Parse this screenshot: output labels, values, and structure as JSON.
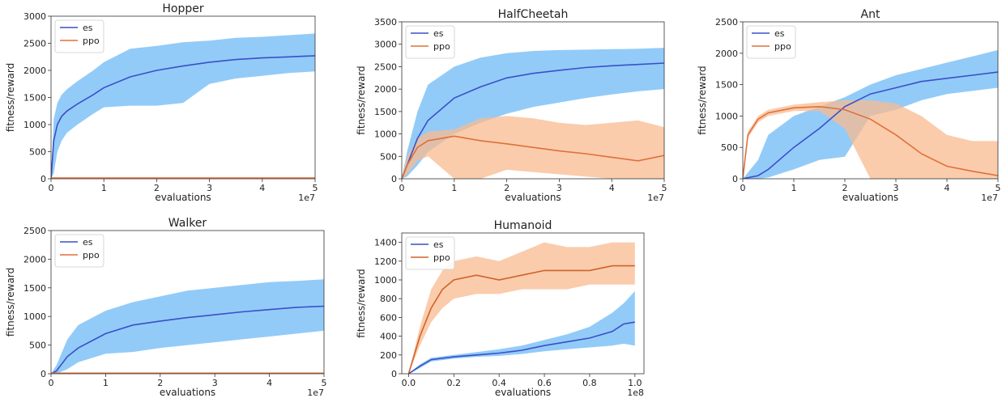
{
  "chart_data": [
    {
      "type": "line",
      "title": "Hopper",
      "xlabel": "evaluations",
      "ylabel": "fitness/reward",
      "x_offset_label": "1e7",
      "xlim": [
        0,
        5
      ],
      "ylim": [
        0,
        3000
      ],
      "xticks": [
        0,
        1,
        2,
        3,
        4,
        5
      ],
      "yticks": [
        0,
        500,
        1000,
        1500,
        2000,
        2500,
        3000
      ],
      "legend": "top-left",
      "grid": false,
      "series": [
        {
          "name": "es",
          "color": "#3a4fc8",
          "band_color": "#6dbaf5",
          "x": [
            0,
            0.05,
            0.12,
            0.2,
            0.3,
            0.5,
            0.8,
            1.0,
            1.5,
            2.0,
            2.5,
            3.0,
            3.5,
            4.0,
            4.5,
            5.0
          ],
          "y": [
            0,
            700,
            1000,
            1150,
            1250,
            1380,
            1550,
            1680,
            1880,
            2000,
            2080,
            2150,
            2200,
            2230,
            2250,
            2270
          ],
          "lower": [
            0,
            100,
            500,
            700,
            850,
            1000,
            1200,
            1320,
            1350,
            1350,
            1400,
            1750,
            1850,
            1900,
            1950,
            1980
          ],
          "upper": [
            0,
            1100,
            1400,
            1550,
            1650,
            1800,
            2000,
            2150,
            2400,
            2450,
            2520,
            2550,
            2600,
            2620,
            2650,
            2680
          ]
        },
        {
          "name": "ppo",
          "color": "#e0703a",
          "band_color": "#f8bb90",
          "x": [
            0,
            5
          ],
          "y": [
            15,
            15
          ],
          "lower": [
            5,
            5
          ],
          "upper": [
            25,
            25
          ]
        }
      ]
    },
    {
      "type": "line",
      "title": "HalfCheetah",
      "xlabel": "evaluations",
      "ylabel": "fitness/reward",
      "x_offset_label": "1e7",
      "xlim": [
        0,
        5
      ],
      "ylim": [
        0,
        3500
      ],
      "xticks": [
        0,
        1,
        2,
        3,
        4,
        5
      ],
      "yticks": [
        0,
        500,
        1000,
        1500,
        2000,
        2500,
        3000,
        3500
      ],
      "legend": "top-left",
      "grid": false,
      "series": [
        {
          "name": "es",
          "color": "#3a4fc8",
          "band_color": "#6dbaf5",
          "x": [
            0,
            0.1,
            0.3,
            0.5,
            1.0,
            1.5,
            2.0,
            2.5,
            3.0,
            3.5,
            4.0,
            4.5,
            5.0
          ],
          "y": [
            0,
            300,
            900,
            1300,
            1800,
            2050,
            2250,
            2350,
            2420,
            2480,
            2520,
            2550,
            2580
          ],
          "lower": [
            0,
            50,
            300,
            600,
            1000,
            1250,
            1450,
            1600,
            1700,
            1800,
            1880,
            1950,
            2000
          ],
          "upper": [
            0,
            600,
            1500,
            2100,
            2500,
            2700,
            2800,
            2850,
            2870,
            2880,
            2890,
            2900,
            2920
          ]
        },
        {
          "name": "ppo",
          "color": "#e0703a",
          "band_color": "#f8bb90",
          "x": [
            0,
            0.1,
            0.3,
            0.5,
            1.0,
            1.5,
            2.0,
            2.5,
            3.0,
            3.5,
            4.0,
            4.5,
            5.0
          ],
          "y": [
            0,
            300,
            700,
            850,
            950,
            850,
            780,
            700,
            620,
            560,
            480,
            400,
            520
          ],
          "lower": [
            0,
            100,
            400,
            500,
            0,
            0,
            200,
            150,
            100,
            50,
            0,
            0,
            0
          ],
          "upper": [
            0,
            500,
            900,
            1050,
            1100,
            1350,
            1400,
            1350,
            1250,
            1200,
            1250,
            1300,
            1150
          ]
        }
      ]
    },
    {
      "type": "line",
      "title": "Ant",
      "xlabel": "evaluations",
      "ylabel": "fitness/reward",
      "x_offset_label": "1e7",
      "xlim": [
        0,
        5
      ],
      "ylim": [
        0,
        2500
      ],
      "xticks": [
        0,
        1,
        2,
        3,
        4,
        5
      ],
      "yticks": [
        0,
        500,
        1000,
        1500,
        2000,
        2500
      ],
      "legend": "top-left",
      "grid": false,
      "series": [
        {
          "name": "es",
          "color": "#3a4fc8",
          "band_color": "#6dbaf5",
          "x": [
            0,
            0.3,
            0.5,
            1.0,
            1.5,
            2.0,
            2.5,
            3.0,
            3.5,
            4.0,
            4.5,
            5.0
          ],
          "y": [
            0,
            50,
            150,
            500,
            800,
            1150,
            1350,
            1450,
            1550,
            1600,
            1650,
            1700
          ],
          "lower": [
            0,
            0,
            20,
            150,
            300,
            350,
            1000,
            1100,
            1250,
            1350,
            1400,
            1450
          ],
          "upper": [
            0,
            300,
            700,
            1000,
            1150,
            1300,
            1500,
            1650,
            1750,
            1850,
            1950,
            2050
          ]
        },
        {
          "name": "ppo",
          "color": "#e0703a",
          "band_color": "#f8bb90",
          "x": [
            0,
            0.1,
            0.3,
            0.5,
            1.0,
            1.5,
            2.0,
            2.5,
            3.0,
            3.5,
            4.0,
            4.5,
            5.0
          ],
          "y": [
            0,
            700,
            950,
            1050,
            1130,
            1150,
            1100,
            950,
            700,
            400,
            200,
            120,
            50
          ],
          "lower": [
            0,
            650,
            900,
            1000,
            1080,
            1080,
            800,
            0,
            0,
            0,
            0,
            0,
            0
          ],
          "upper": [
            0,
            750,
            1000,
            1100,
            1180,
            1220,
            1250,
            1250,
            1200,
            1000,
            700,
            600,
            600
          ]
        }
      ]
    },
    {
      "type": "line",
      "title": "Walker",
      "xlabel": "evaluations",
      "ylabel": "fitness/reward",
      "x_offset_label": "1e7",
      "xlim": [
        0,
        5
      ],
      "ylim": [
        0,
        2500
      ],
      "xticks": [
        0,
        1,
        2,
        3,
        4,
        5
      ],
      "yticks": [
        0,
        500,
        1000,
        1500,
        2000,
        2500
      ],
      "legend": "top-left",
      "grid": false,
      "series": [
        {
          "name": "es",
          "color": "#3a4fc8",
          "band_color": "#6dbaf5",
          "x": [
            0,
            0.1,
            0.3,
            0.5,
            1.0,
            1.5,
            2.0,
            2.5,
            3.0,
            3.5,
            4.0,
            4.5,
            5.0
          ],
          "y": [
            0,
            50,
            300,
            450,
            700,
            850,
            920,
            980,
            1030,
            1080,
            1120,
            1160,
            1180
          ],
          "lower": [
            0,
            0,
            80,
            200,
            350,
            380,
            450,
            500,
            550,
            600,
            650,
            700,
            750
          ],
          "upper": [
            0,
            150,
            600,
            850,
            1100,
            1250,
            1350,
            1450,
            1500,
            1550,
            1600,
            1620,
            1650
          ]
        },
        {
          "name": "ppo",
          "color": "#e0703a",
          "band_color": "#f8bb90",
          "x": [
            0,
            5
          ],
          "y": [
            10,
            10
          ],
          "lower": [
            5,
            5
          ],
          "upper": [
            15,
            15
          ]
        }
      ]
    },
    {
      "type": "line",
      "title": "Humanoid",
      "xlabel": "evaluations",
      "ylabel": "fitness/reward",
      "x_offset_label": "1e8",
      "xlim": [
        -0.03,
        1.04
      ],
      "ylim": [
        0,
        1500
      ],
      "xticks": [
        0.0,
        0.2,
        0.4,
        0.6,
        0.8,
        1.0
      ],
      "xtick_labels": [
        "0.0",
        "0.2",
        "0.4",
        "0.6",
        "0.8",
        "1.0"
      ],
      "yticks": [
        0,
        200,
        400,
        600,
        800,
        1000,
        1200,
        1400
      ],
      "legend": "top-left",
      "grid": false,
      "series": [
        {
          "name": "es",
          "color": "#3a4fc8",
          "band_color": "#6dbaf5",
          "x": [
            0,
            0.05,
            0.1,
            0.2,
            0.3,
            0.4,
            0.5,
            0.6,
            0.7,
            0.8,
            0.9,
            0.95,
            1.0
          ],
          "y": [
            0,
            80,
            150,
            180,
            200,
            220,
            250,
            300,
            340,
            380,
            450,
            530,
            550
          ],
          "lower": [
            0,
            60,
            130,
            160,
            180,
            190,
            210,
            240,
            260,
            280,
            300,
            320,
            300
          ],
          "upper": [
            0,
            100,
            170,
            200,
            230,
            260,
            300,
            360,
            420,
            500,
            650,
            750,
            880
          ]
        },
        {
          "name": "ppo",
          "color": "#d0622a",
          "band_color": "#f8bb90",
          "x": [
            0,
            0.05,
            0.1,
            0.15,
            0.2,
            0.3,
            0.4,
            0.5,
            0.6,
            0.7,
            0.8,
            0.9,
            1.0
          ],
          "y": [
            0,
            400,
            700,
            900,
            1000,
            1050,
            1000,
            1050,
            1100,
            1100,
            1100,
            1150,
            1150
          ],
          "lower": [
            0,
            300,
            550,
            700,
            800,
            850,
            850,
            900,
            900,
            900,
            950,
            950,
            950
          ],
          "upper": [
            0,
            500,
            900,
            1100,
            1200,
            1250,
            1200,
            1300,
            1400,
            1350,
            1350,
            1400,
            1400
          ]
        }
      ]
    }
  ]
}
